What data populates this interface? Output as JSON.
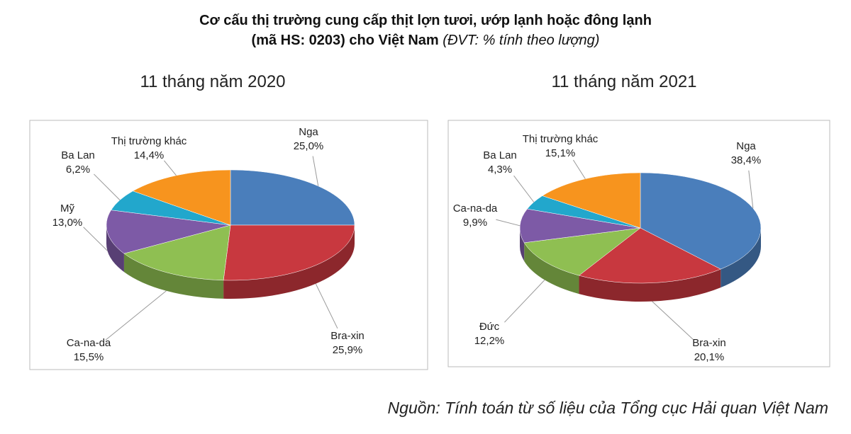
{
  "title": [
    "Cơ cấu thị trường cung cấp thịt lợn tươi, ướp lạnh hoặc đông lạnh",
    "(mã HS: 0203) cho Việt Nam"
  ],
  "unit_note": "(ĐVT: % tính theo lượng)",
  "source": "Nguồn: Tính toán từ số liệu của Tổng cục Hải quan Việt Nam",
  "chart_data": [
    {
      "type": "pie",
      "title": "11 tháng năm 2020",
      "categories": [
        "Nga",
        "Bra-xin",
        "Ca-na-da",
        "Mỹ",
        "Ba Lan",
        "Thị trường khác"
      ],
      "values": [
        25.0,
        25.9,
        15.5,
        13.0,
        6.2,
        14.4
      ],
      "value_labels": [
        "25,0%",
        "25,9%",
        "15,5%",
        "13,0%",
        "6,2%",
        "14,4%"
      ],
      "colors": [
        "#4a7ebb",
        "#c8383f",
        "#8fbf52",
        "#7d5aa6",
        "#22a7cc",
        "#f7941e"
      ]
    },
    {
      "type": "pie",
      "title": "11 tháng năm 2021",
      "categories": [
        "Nga",
        "Bra-xin",
        "Đức",
        "Ca-na-da",
        "Ba Lan",
        "Thị trường khác"
      ],
      "values": [
        38.4,
        20.1,
        12.2,
        9.9,
        4.3,
        15.1
      ],
      "value_labels": [
        "38,4%",
        "20,1%",
        "12,2%",
        "9,9%",
        "4,3%",
        "15,1%"
      ],
      "colors": [
        "#4a7ebb",
        "#c8383f",
        "#8fbf52",
        "#7d5aa6",
        "#22a7cc",
        "#f7941e"
      ]
    }
  ]
}
